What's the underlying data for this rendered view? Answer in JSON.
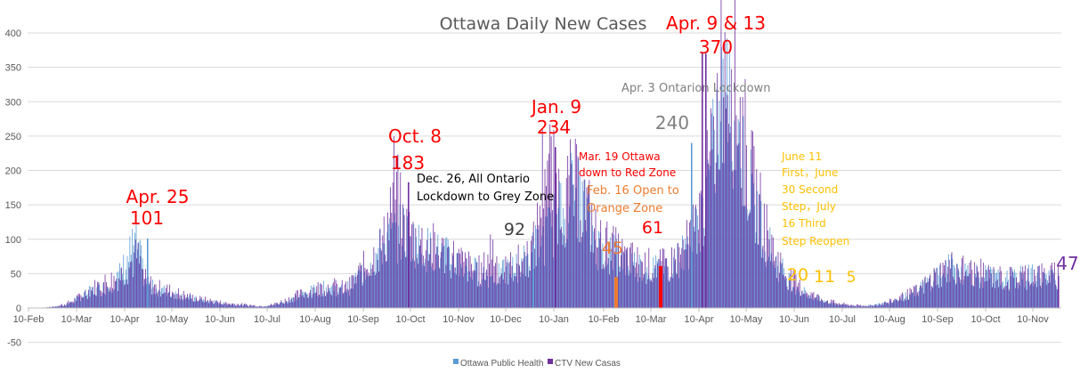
{
  "chart_data": {
    "type": "bar",
    "title": "Ottawa Daily New Cases",
    "xlabel": "",
    "ylabel": "",
    "ylim": [
      -50,
      400
    ],
    "yticks": [
      -50,
      0,
      50,
      100,
      150,
      200,
      250,
      300,
      350,
      400
    ],
    "x_tick_labels": [
      "10-Feb",
      "10-Mar",
      "10-Apr",
      "10-May",
      "10-Jun",
      "10-Jul",
      "10-Aug",
      "10-Sep",
      "10-Oct",
      "10-Nov",
      "10-Dec",
      "10-Jan",
      "10-Feb",
      "10-Mar",
      "10-Apr",
      "10-May",
      "10-Jun",
      "10-Jul",
      "10-Aug",
      "10-Sep",
      "10-Oct",
      "10-Nov"
    ],
    "gridlines": true,
    "legend_position": "bottom",
    "series": [
      {
        "name": "Ottawa Public Health",
        "color": "#5B9BD5",
        "weekly_values": [
          0,
          0,
          1,
          2,
          4,
          10,
          18,
          25,
          27,
          33,
          45,
          70,
          100,
          40,
          28,
          25,
          22,
          18,
          14,
          12,
          10,
          8,
          6,
          5,
          4,
          3,
          2,
          3,
          6,
          10,
          15,
          20,
          25,
          28,
          30,
          25,
          30,
          45,
          60,
          75,
          95,
          105,
          110,
          100,
          90,
          85,
          80,
          75,
          70,
          60,
          55,
          50,
          45,
          48,
          55,
          60,
          70,
          90,
          100,
          120,
          140,
          170,
          160,
          130,
          90,
          85,
          80,
          70,
          65,
          60,
          58,
          56,
          60,
          70,
          85,
          110,
          150,
          220,
          300,
          290,
          240,
          180,
          140,
          100,
          70,
          50,
          35,
          25,
          18,
          12,
          8,
          6,
          4,
          3,
          3,
          4,
          6,
          10,
          15,
          20,
          25,
          35,
          45,
          55,
          58,
          55,
          50,
          48,
          45,
          42,
          40,
          42,
          45,
          48,
          45,
          42
        ]
      },
      {
        "name": "CTV New Casas",
        "color": "#7030A0",
        "weekly_values": [
          0,
          0,
          1,
          3,
          6,
          12,
          20,
          28,
          35,
          40,
          45,
          60,
          75,
          40,
          30,
          28,
          24,
          20,
          16,
          13,
          11,
          9,
          7,
          6,
          5,
          4,
          3,
          4,
          8,
          12,
          18,
          22,
          28,
          30,
          32,
          28,
          32,
          48,
          65,
          80,
          100,
          183,
          120,
          105,
          95,
          90,
          82,
          78,
          72,
          62,
          56,
          52,
          92,
          50,
          58,
          65,
          75,
          95,
          234,
          180,
          150,
          175,
          165,
          135,
          95,
          90,
          82,
          72,
          68,
          62,
          61,
          60,
          62,
          75,
          90,
          120,
          160,
          230,
          370,
          370,
          280,
          200,
          150,
          110,
          75,
          52,
          38,
          28,
          20,
          14,
          10,
          7,
          5,
          4,
          3,
          4,
          6,
          10,
          15,
          20,
          25,
          35,
          45,
          55,
          60,
          56,
          52,
          50,
          47,
          44,
          42,
          44,
          47,
          50,
          47,
          47
        ]
      }
    ],
    "annotations": [
      {
        "text": "Apr. 25",
        "color": "#FF0000"
      },
      {
        "text": "101",
        "color": "#FF0000"
      },
      {
        "text": "Oct. 8",
        "color": "#FF0000"
      },
      {
        "text": "183",
        "color": "#FF0000"
      },
      {
        "text": "Dec. 26, All Ontario",
        "color": "#000000"
      },
      {
        "text": "Lockdown to Grey Zone",
        "color": "#000000"
      },
      {
        "text": "92",
        "color": "#404040"
      },
      {
        "text": "Jan. 9",
        "color": "#FF0000"
      },
      {
        "text": "234",
        "color": "#FF0000"
      },
      {
        "text": "Apr. 3 Ontarion Lockdown",
        "color": "#808080"
      },
      {
        "text": "Apr. 9 & 13",
        "color": "#FF0000"
      },
      {
        "text": "370",
        "color": "#FF0000"
      },
      {
        "text": "240",
        "color": "#808080"
      },
      {
        "text": "Mar. 19 Ottawa",
        "color": "#FF0000"
      },
      {
        "text": "down to Red Zone",
        "color": "#FF0000"
      },
      {
        "text": "Feb. 16 Open to",
        "color": "#ED7D31"
      },
      {
        "text": "Orange Zone",
        "color": "#ED7D31"
      },
      {
        "text": "45",
        "color": "#ED7D31"
      },
      {
        "text": "61",
        "color": "#FF0000"
      },
      {
        "text": "June 11",
        "color": "#FFC000"
      },
      {
        "text": "First，June",
        "color": "#FFC000"
      },
      {
        "text": "30 Second",
        "color": "#FFC000"
      },
      {
        "text": "Step，July",
        "color": "#FFC000"
      },
      {
        "text": "16 Third",
        "color": "#FFC000"
      },
      {
        "text": "Step Reopen",
        "color": "#FFC000"
      },
      {
        "text": "20",
        "color": "#FFC000"
      },
      {
        "text": "11",
        "color": "#FFC000"
      },
      {
        "text": "5",
        "color": "#FFC000"
      },
      {
        "text": "47",
        "color": "#7030A0"
      }
    ],
    "highlight_bars": [
      {
        "label": "Feb. 16",
        "value": 45,
        "color": "#ED7D31"
      },
      {
        "label": "Mar. 19",
        "value": 61,
        "color": "#FF0000"
      }
    ]
  }
}
